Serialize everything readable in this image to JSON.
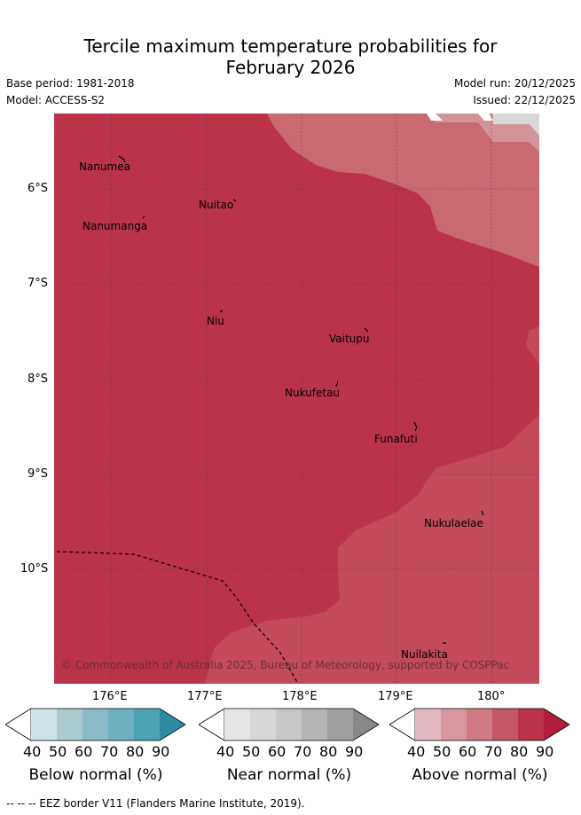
{
  "title_line1": "Tercile maximum temperature probabilities for",
  "title_line2": "February 2026",
  "base_period": "Base period: 1981-2018",
  "model": "Model: ACCESS-S2",
  "model_run": "Model run: 20/12/2025",
  "issued": "Issued: 22/12/2025",
  "places": [
    "Nanumea",
    "Nuitao",
    "Nanumanga",
    "Niu",
    "Vaitupu",
    "Nukufetau",
    "Funafuti",
    "Nukulaelae",
    "Nuilakita"
  ],
  "lat_labels": [
    "6°S",
    "7°S",
    "8°S",
    "9°S",
    "10°S"
  ],
  "lon_labels": [
    "176°E",
    "177°E",
    "178°E",
    "179°E",
    "180°"
  ],
  "copyright": "© Commonwealth of Australia 2025, Bureau of Meteorology, supported by COSPPac",
  "colorbars": [
    {
      "label": "Below normal (%)",
      "ticks": [
        "40",
        "50",
        "60",
        "70",
        "80",
        "90"
      ],
      "colors": [
        "#cfe3e8",
        "#aacbd0",
        "#8bbbc6",
        "#6fb0c0",
        "#4ba2b3",
        "#2d8ca4"
      ]
    },
    {
      "label": "Near normal (%)",
      "ticks": [
        "40",
        "50",
        "60",
        "70",
        "80",
        "90"
      ],
      "colors": [
        "#e6e6e6",
        "#d8d8d8",
        "#c8c8c8",
        "#b5b5b5",
        "#a0a0a0",
        "#888888"
      ]
    },
    {
      "label": "Above normal (%)",
      "ticks": [
        "40",
        "50",
        "60",
        "70",
        "80",
        "90"
      ],
      "colors": [
        "#e2b9c0",
        "#d8979f",
        "#cf7a84",
        "#c55866",
        "#bb334b",
        "#b01c3b"
      ]
    }
  ],
  "footer": "-- -- -- EEZ border V11 (Flanders Marine Institute, 2019).",
  "colors": {
    "dark": "#bb334b",
    "medium": "#c24a5a",
    "light": "#c96a73",
    "lighter": "#d3939b",
    "grey": "#d8d8d8"
  }
}
